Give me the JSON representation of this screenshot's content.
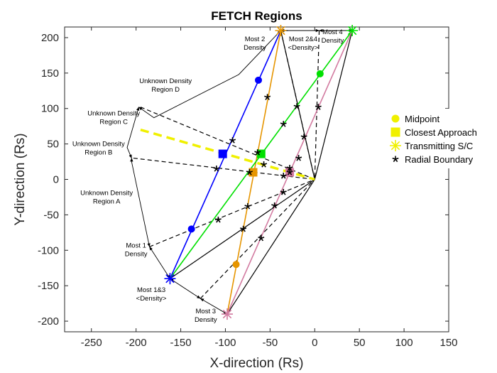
{
  "chart_data": {
    "type": "scatter",
    "title": "FETCH Regions",
    "xlabel": "X-direction (Rs)",
    "ylabel": "Y-direction (Rs)",
    "xlim": [
      -280,
      150
    ],
    "ylim": [
      -215,
      215
    ],
    "xticks": [
      -250,
      -200,
      -150,
      -100,
      -50,
      0,
      50,
      100,
      150
    ],
    "yticks": [
      -200,
      -150,
      -100,
      -50,
      0,
      50,
      100,
      150,
      200
    ],
    "grid": false,
    "legend_position": "right",
    "colors": {
      "blue": "#0000ff",
      "orange": "#e69500",
      "green": "#00e000",
      "pink": "#d27aa0",
      "yellow": "#f0f000",
      "black": "#000000"
    },
    "origin": [
      0,
      0
    ],
    "transmitters": [
      {
        "x": -162,
        "y": -140,
        "color": "#0000ff"
      },
      {
        "x": -98,
        "y": -190,
        "color": "#d27aa0"
      },
      {
        "x": -38,
        "y": 210,
        "color": "#e69500"
      },
      {
        "x": 42,
        "y": 210,
        "color": "#00e000"
      }
    ],
    "rays": [
      {
        "x1": -162,
        "y1": -140,
        "x2": -38,
        "y2": 210,
        "color": "#0000ff"
      },
      {
        "x1": -98,
        "y1": -190,
        "x2": -38,
        "y2": 210,
        "color": "#e69500"
      },
      {
        "x1": -162,
        "y1": -140,
        "x2": 42,
        "y2": 210,
        "color": "#00e000"
      },
      {
        "x1": -98,
        "y1": -190,
        "x2": 42,
        "y2": 210,
        "color": "#d27aa0"
      }
    ],
    "midpoints": [
      {
        "x": -63,
        "y": 140,
        "color": "#0000ff"
      },
      {
        "x": -138,
        "y": -70,
        "color": "#0000ff"
      },
      {
        "x": 6,
        "y": 149,
        "color": "#00e000"
      },
      {
        "x": -88,
        "y": -120,
        "color": "#e69500"
      }
    ],
    "closest_approach": [
      {
        "x": -103,
        "y": 36,
        "color": "#0000ff"
      },
      {
        "x": -69,
        "y": 10,
        "color": "#e69500"
      },
      {
        "x": -60,
        "y": 36,
        "color": "#00e000"
      },
      {
        "x": -28,
        "y": 10,
        "color": "#d27aa0"
      }
    ],
    "radial_boundary": [
      {
        "x": -92,
        "y": 55
      },
      {
        "x": -110,
        "y": 15
      },
      {
        "x": -108,
        "y": -57
      },
      {
        "x": -64,
        "y": 38
      },
      {
        "x": -73,
        "y": 10
      },
      {
        "x": -75,
        "y": -38
      },
      {
        "x": -80,
        "y": -70
      },
      {
        "x": -53,
        "y": 116
      },
      {
        "x": -57,
        "y": 21
      },
      {
        "x": -35,
        "y": 78
      },
      {
        "x": -28,
        "y": 16
      },
      {
        "x": -35,
        "y": 5
      },
      {
        "x": -35,
        "y": -18
      },
      {
        "x": -45,
        "y": -37
      },
      {
        "x": -60,
        "y": -83
      },
      {
        "x": -20,
        "y": 103
      },
      {
        "x": -12,
        "y": 60
      },
      {
        "x": -18,
        "y": 30
      },
      {
        "x": 4,
        "y": 102
      },
      {
        "x": -28,
        "y": 10
      }
    ],
    "radial_lines": [
      {
        "x2": -38,
        "y2": 210
      },
      {
        "x2": 42,
        "y2": 210
      },
      {
        "x2": -162,
        "y2": -140
      },
      {
        "x2": -98,
        "y2": -190
      }
    ],
    "dashed_lines": [
      [
        [
          -30,
          210
        ],
        [
          -38,
          210
        ],
        [
          0,
          0
        ]
      ],
      [
        [
          5,
          210
        ],
        [
          0,
          0
        ]
      ],
      [
        [
          -195,
          102
        ],
        [
          0,
          0
        ]
      ],
      [
        [
          -203,
          30
        ],
        [
          0,
          0
        ]
      ],
      [
        [
          -185,
          -95
        ],
        [
          0,
          0
        ]
      ],
      [
        [
          -128,
          -168
        ],
        [
          0,
          0
        ]
      ]
    ],
    "region_boundary": [
      [
        -38,
        210
      ],
      [
        -85,
        148
      ],
      [
        -180,
        87
      ],
      [
        -197,
        102
      ],
      [
        -203,
        30
      ],
      [
        -185,
        -95
      ],
      [
        -162,
        -140
      ],
      [
        -128,
        -168
      ],
      [
        -98,
        -190
      ],
      [
        0,
        0
      ]
    ],
    "outer_arcs": [
      [
        [
          -38,
          210
        ],
        [
          -85,
          148
        ],
        [
          -180,
          87
        ],
        [
          -197,
          102
        ]
      ],
      [
        [
          -197,
          102
        ],
        [
          -210,
          45
        ],
        [
          -205,
          30
        ]
      ],
      [
        [
          -205,
          30
        ],
        [
          -205,
          25
        ],
        [
          -185,
          -95
        ]
      ],
      [
        [
          -185,
          -95
        ],
        [
          -162,
          -140
        ]
      ],
      [
        [
          -162,
          -140
        ],
        [
          -128,
          -168
        ]
      ],
      [
        [
          -128,
          -168
        ],
        [
          -98,
          -190
        ]
      ],
      [
        [
          -38,
          210
        ],
        [
          5,
          210
        ]
      ],
      [
        [
          5,
          210
        ],
        [
          42,
          210
        ]
      ]
    ],
    "yellow_dash": [
      [
        -195,
        70
      ],
      [
        0,
        0
      ]
    ],
    "legend": [
      {
        "label": "Midpoint",
        "marker": "circle"
      },
      {
        "label": "Closest Approach",
        "marker": "square"
      },
      {
        "label": "Transmitting S/C",
        "marker": "asterisk"
      },
      {
        "label": "Radial Boundary",
        "marker": "star"
      }
    ],
    "annotations": [
      {
        "lines": [
          "Most 2",
          "Density"
        ],
        "x": -67,
        "y": 195
      },
      {
        "lines": [
          "Most 2&4",
          "<Density>"
        ],
        "x": -13,
        "y": 195
      },
      {
        "lines": [
          "Most 4",
          "Density"
        ],
        "x": 20,
        "y": 205
      },
      {
        "lines": [
          "Unknown Density",
          "Region D"
        ],
        "x": -167,
        "y": 136
      },
      {
        "lines": [
          "Unknown Density",
          "Region C"
        ],
        "x": -225,
        "y": 90
      },
      {
        "lines": [
          "Unknown Density",
          "Region B"
        ],
        "x": -242,
        "y": 47
      },
      {
        "lines": [
          "Unknown Density",
          "Region A"
        ],
        "x": -233,
        "y": -22
      },
      {
        "lines": [
          "Most 1",
          "Density"
        ],
        "x": -200,
        "y": -96
      },
      {
        "lines": [
          "Most 1&3",
          "<Density>"
        ],
        "x": -183,
        "y": -159
      },
      {
        "lines": [
          "Most 3",
          "Density"
        ],
        "x": -122,
        "y": -189
      }
    ]
  }
}
